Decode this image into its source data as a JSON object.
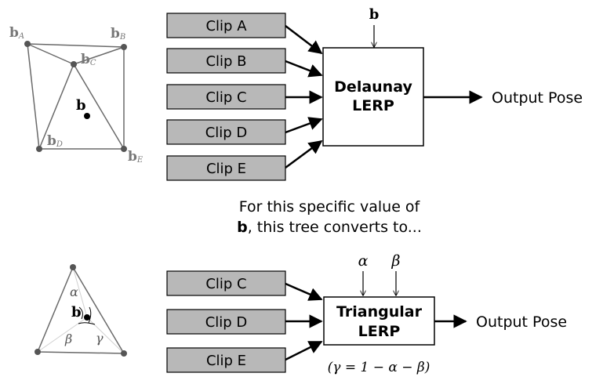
{
  "top_diagram": {
    "vertex_labels": {
      "bA": {
        "main": "b",
        "sub": "A"
      },
      "bB": {
        "main": "b",
        "sub": "B"
      },
      "bC": {
        "main": "b",
        "sub": "C"
      },
      "bD": {
        "main": "b",
        "sub": "D"
      },
      "bE": {
        "main": "b",
        "sub": "E"
      },
      "b": "b"
    },
    "clips": [
      "Clip A",
      "Clip B",
      "Clip C",
      "Clip D",
      "Clip E"
    ],
    "blend_input_label": "b",
    "blend_box": {
      "line1": "Delaunay",
      "line2": "LERP"
    },
    "output_label": "Output Pose"
  },
  "caption": {
    "line1": "For this specific value of",
    "line2_bold": "b",
    "line2_rest": ", this tree converts to..."
  },
  "bottom_diagram": {
    "triangle_labels": {
      "alpha": "α",
      "beta": "β",
      "gamma": "γ",
      "b": "b"
    },
    "clips": [
      "Clip C",
      "Clip D",
      "Clip E"
    ],
    "weight_inputs": [
      "α",
      "β"
    ],
    "blend_box": {
      "line1": "Triangular",
      "line2": "LERP"
    },
    "output_label": "Output Pose",
    "formula": "(γ = 1 − α − β)"
  },
  "colors": {
    "clip_fill": "#b8b8b8",
    "line": "#000000",
    "triangle_line": "#6a6a6a",
    "vertex_point": "#555555",
    "vertex_label": "#777777"
  }
}
